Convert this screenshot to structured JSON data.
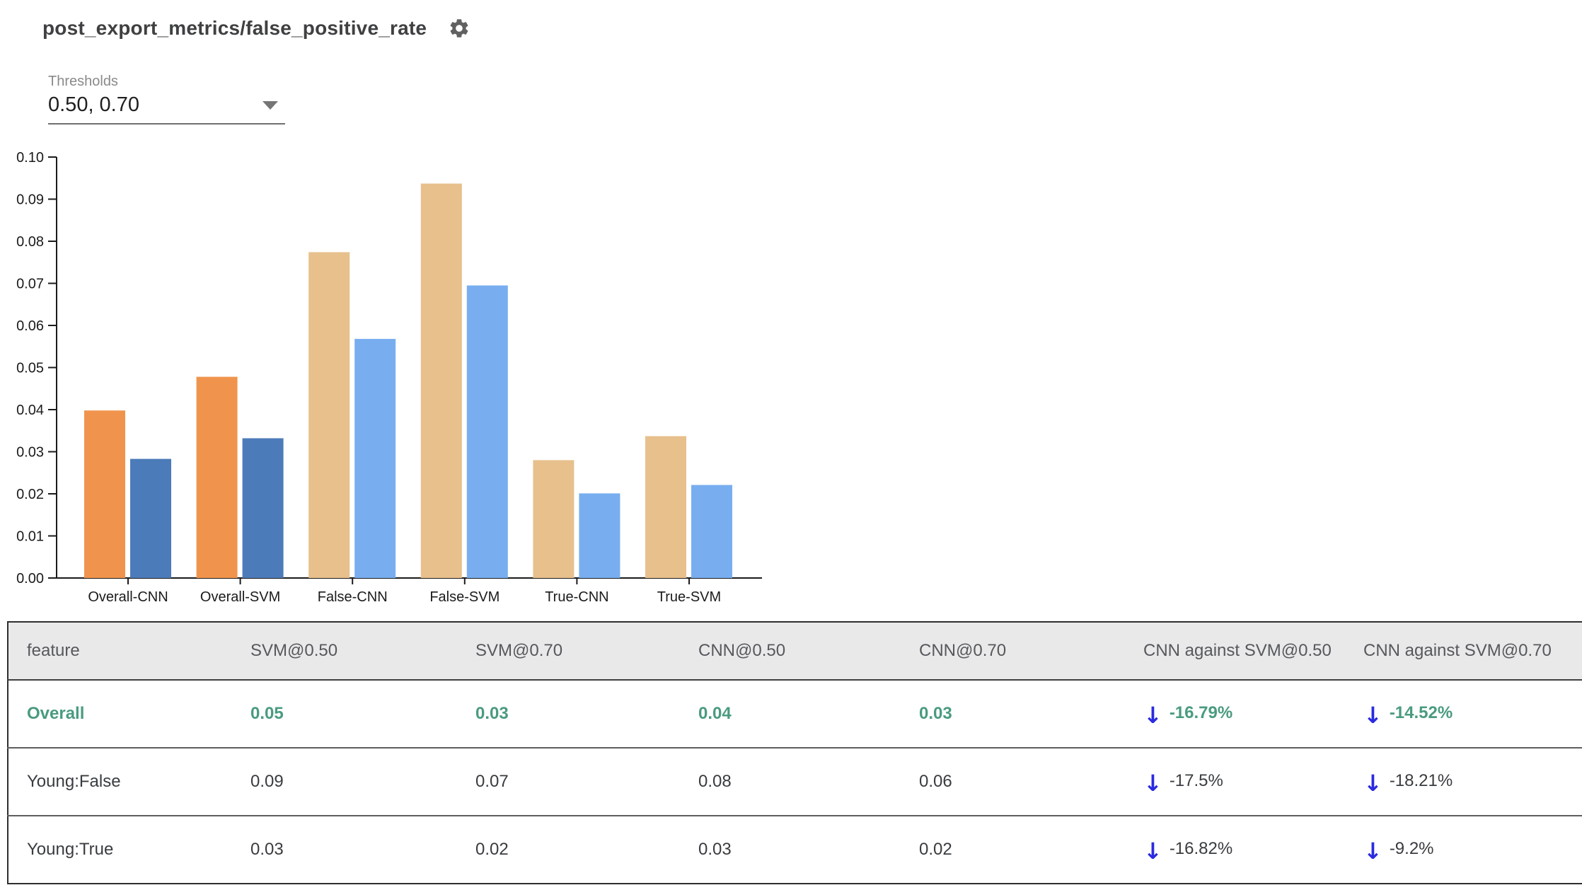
{
  "header": {
    "title": "post_export_metrics/false_positive_rate"
  },
  "thresholds": {
    "label": "Thresholds",
    "value": "0.50, 0.70"
  },
  "chart_data": {
    "type": "bar",
    "title": "",
    "xlabel": "",
    "ylabel": "",
    "categories": [
      "Overall-CNN",
      "Overall-SVM",
      "False-CNN",
      "False-SVM",
      "True-CNN",
      "True-SVM"
    ],
    "series": [
      {
        "name": "threshold-0.50",
        "values": [
          0.0398,
          0.0478,
          0.0774,
          0.0937,
          0.028,
          0.0337
        ]
      },
      {
        "name": "threshold-0.70",
        "values": [
          0.0283,
          0.0332,
          0.0568,
          0.0695,
          0.0201,
          0.0221
        ]
      }
    ],
    "highlighted_categories": [
      "Overall-CNN",
      "Overall-SVM"
    ],
    "ylim": [
      0,
      0.1
    ],
    "ytick_step": 0.01,
    "ytick_format_decimals": 2,
    "grid": false,
    "legend": "none",
    "colors": {
      "series1_highlight": "#F0944D",
      "series2_highlight": "#4C7BB9",
      "series1_normal": "#E7C08C",
      "series2_normal": "#78AEF0"
    }
  },
  "table": {
    "arrow_glyph": "↓",
    "columns": [
      "feature",
      "SVM@0.50",
      "SVM@0.70",
      "CNN@0.50",
      "CNN@0.70",
      "CNN against SVM@0.50",
      "CNN against SVM@0.70"
    ],
    "rows": [
      {
        "feature": "Overall",
        "values": [
          "0.05",
          "0.03",
          "0.04",
          "0.03"
        ],
        "comparisons": [
          "-16.79%",
          "-14.52%"
        ],
        "selected": true
      },
      {
        "feature": "Young:False",
        "values": [
          "0.09",
          "0.07",
          "0.08",
          "0.06"
        ],
        "comparisons": [
          "-17.5%",
          "-18.21%"
        ],
        "selected": false
      },
      {
        "feature": "Young:True",
        "values": [
          "0.03",
          "0.02",
          "0.03",
          "0.02"
        ],
        "comparisons": [
          "-16.82%",
          "-9.2%"
        ],
        "selected": false
      }
    ]
  },
  "colors": {
    "selected_row_text": "#4A9B80",
    "comparison_arrow": "#2B2BE0",
    "table_header_bg": "#E9E9EA"
  }
}
